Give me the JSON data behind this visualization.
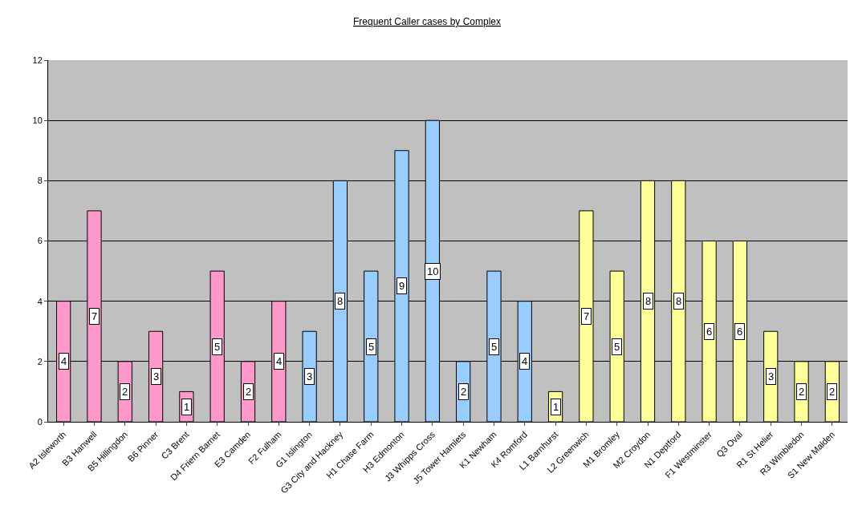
{
  "chart_data": {
    "type": "bar",
    "title": "Frequent Caller cases by Complex",
    "categories": [
      "A2 Isleworth",
      "B3 Hanwell",
      "B5 Hillingdon",
      "B6 Pinner",
      "C3 Brent",
      "D4 Friern Barnet",
      "E3 Camden",
      "F2 Fulham",
      "G1 Islington",
      "G3 City and Hackney",
      "H1 Chase Farm",
      "H3 Edmonton",
      "J3 Whipps Cross",
      "J5 Tower Hamlets",
      "K1 Newham",
      "K4 Romford",
      "L1 Barnhurst",
      "L2 Greenwich",
      "M1 Bromley",
      "M2 Croydon",
      "N1 Deptford",
      "F1 Westminster",
      "Q3 Oval",
      "R1 St Helier",
      "R3 Wimbledon",
      "S1 New Malden"
    ],
    "values": [
      4,
      7,
      2,
      3,
      1,
      5,
      2,
      4,
      3,
      8,
      5,
      9,
      10,
      2,
      5,
      4,
      1,
      7,
      5,
      8,
      8,
      6,
      6,
      3,
      2,
      2
    ],
    "colors": [
      "#ff99cc",
      "#ff99cc",
      "#ff99cc",
      "#ff99cc",
      "#ff99cc",
      "#ff99cc",
      "#ff99cc",
      "#ff99cc",
      "#99ccff",
      "#99ccff",
      "#99ccff",
      "#99ccff",
      "#99ccff",
      "#99ccff",
      "#99ccff",
      "#99ccff",
      "#ffff99",
      "#ffff99",
      "#ffff99",
      "#ffff99",
      "#ffff99",
      "#ffff99",
      "#ffff99",
      "#ffff99",
      "#ffff99",
      "#ffff99"
    ],
    "ylim": [
      0,
      12
    ],
    "yticks": [
      0,
      2,
      4,
      6,
      8,
      10,
      12
    ],
    "grid": "y",
    "data_labels": true
  }
}
